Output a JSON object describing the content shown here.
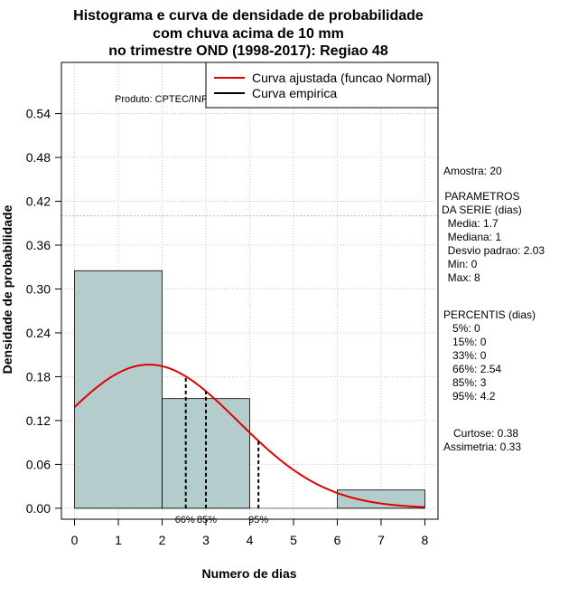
{
  "chart_data": {
    "type": "histogram",
    "title_lines": [
      "Histograma e curva de densidade de probabilidade",
      "com chuva acima de 10 mm",
      "no trimestre OND (1998-2017): Regiao 48"
    ],
    "xlabel": "Numero de dias",
    "ylabel": "Densidade de probabilidade",
    "xlim": [
      -0.3,
      8.3
    ],
    "ylim": [
      -0.015,
      0.61
    ],
    "xticks": [
      0,
      1,
      2,
      3,
      4,
      5,
      6,
      7,
      8
    ],
    "yticks": [
      "0.00",
      "0.06",
      "0.12",
      "0.18",
      "0.24",
      "0.30",
      "0.36",
      "0.42",
      "0.48",
      "0.54"
    ],
    "grid": true,
    "bars": [
      {
        "x0": 0,
        "x1": 2,
        "density": 0.325
      },
      {
        "x0": 2,
        "x1": 4,
        "density": 0.15
      },
      {
        "x0": 4,
        "x1": 6,
        "density": 0.0
      },
      {
        "x0": 6,
        "x1": 8,
        "density": 0.025
      }
    ],
    "bar_color": "#b4cccc",
    "normal_fit": {
      "mean": 1.7,
      "sd": 2.03,
      "color": "#e00000"
    },
    "hline_y": 0.4,
    "percentile_lines": [
      {
        "x": 2.54,
        "label": "66%"
      },
      {
        "x": 3,
        "label": "85%"
      },
      {
        "x": 4.2,
        "label": "95%"
      }
    ],
    "legend": {
      "position": "top-right",
      "entries": [
        {
          "label": "Curva ajustada (funcao Normal)",
          "color": "#e00000"
        },
        {
          "label": "Curva empirica",
          "color": "#000000"
        }
      ]
    },
    "produto": "Produto: CPTEC/INPE"
  },
  "stats": {
    "amostra": "Amostra: 20",
    "param_lines": [
      " PARAMETROS",
      "DA SERIE (dias)",
      "  Media: 1.7",
      "  Mediana: 1",
      "  Desvio padrao: 2.03",
      "  Min: 0",
      "  Max: 8"
    ],
    "perc_lines": [
      "PERCENTIS (dias)",
      "   5%: 0",
      "   15%: 0",
      "   33%: 0",
      "   66%: 2.54",
      "   85%: 3",
      "   95%: 4.2"
    ],
    "curtose": "Curtose: 0.38",
    "assimetria": "Assimetria: 0.33"
  }
}
